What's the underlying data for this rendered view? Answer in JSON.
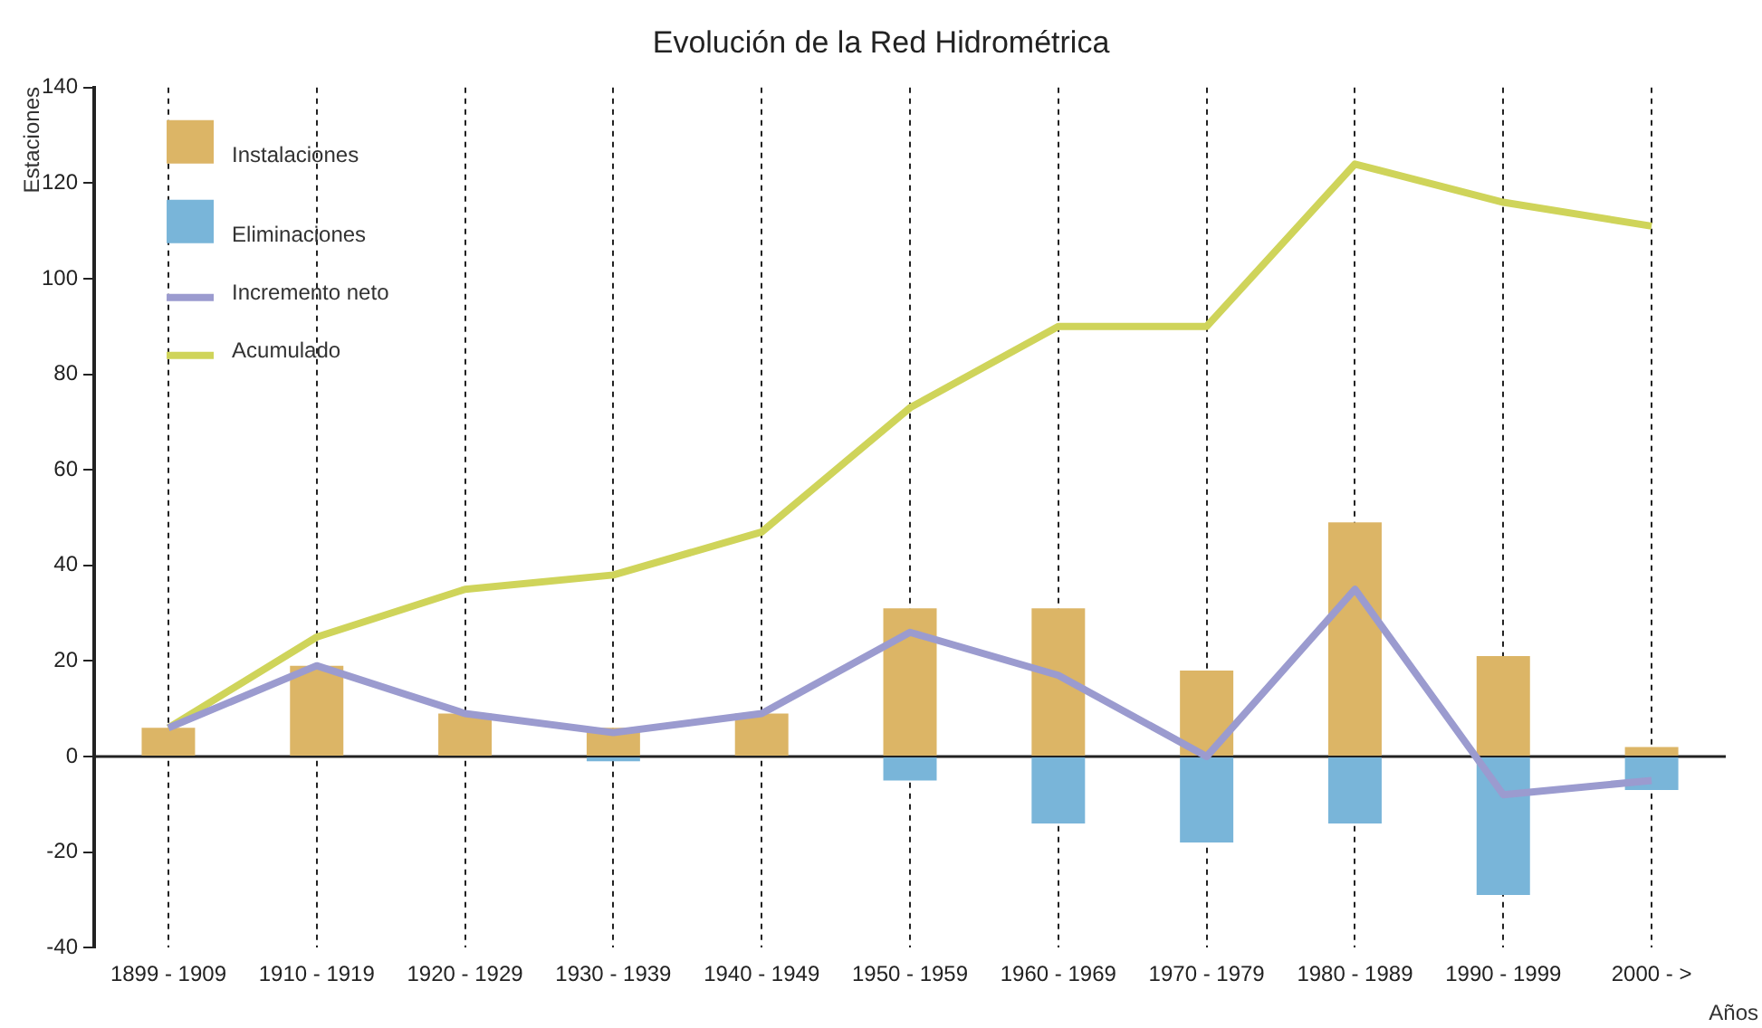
{
  "chart_data": {
    "type": "bar",
    "title": "Evolución de la Red Hidrométrica",
    "xlabel": "Años",
    "ylabel": "Estaciones",
    "categories": [
      "1899 - 1909",
      "1910 - 1919",
      "1920 - 1929",
      "1930 - 1939",
      "1940 - 1949",
      "1950 - 1959",
      "1960 - 1969",
      "1970 - 1979",
      "1980 - 1989",
      "1990 - 1999",
      "2000 - >"
    ],
    "series": [
      {
        "name": "Instalaciones",
        "color": "#dcb566",
        "values": [
          6,
          19,
          9,
          6,
          9,
          31,
          31,
          18,
          49,
          21,
          2
        ]
      },
      {
        "name": "Eliminaciones",
        "color": "#79b5d9",
        "values": [
          0,
          0,
          0,
          -1,
          0,
          -5,
          -14,
          -18,
          -14,
          -29,
          -7
        ]
      },
      {
        "name": "Incremento neto",
        "type": "line",
        "color": "#9b9bcf",
        "values": [
          6,
          19,
          9,
          5,
          9,
          26,
          17,
          0,
          35,
          -8,
          -5
        ]
      },
      {
        "name": "Acumulado",
        "type": "line",
        "color": "#cfd45a",
        "values": [
          6,
          25,
          35,
          38,
          47,
          73,
          90,
          90,
          124,
          116,
          111
        ]
      }
    ],
    "stacked": true,
    "ylim": [
      -40,
      140
    ],
    "yticks": [
      -40,
      -20,
      0,
      20,
      40,
      60,
      80,
      100,
      120,
      140
    ],
    "grid": "x",
    "legend": "top left",
    "marker": "none",
    "line_style": "solid",
    "ref_lines": [
      {
        "axis": "y",
        "value": 0,
        "color": "#222222"
      }
    ]
  }
}
